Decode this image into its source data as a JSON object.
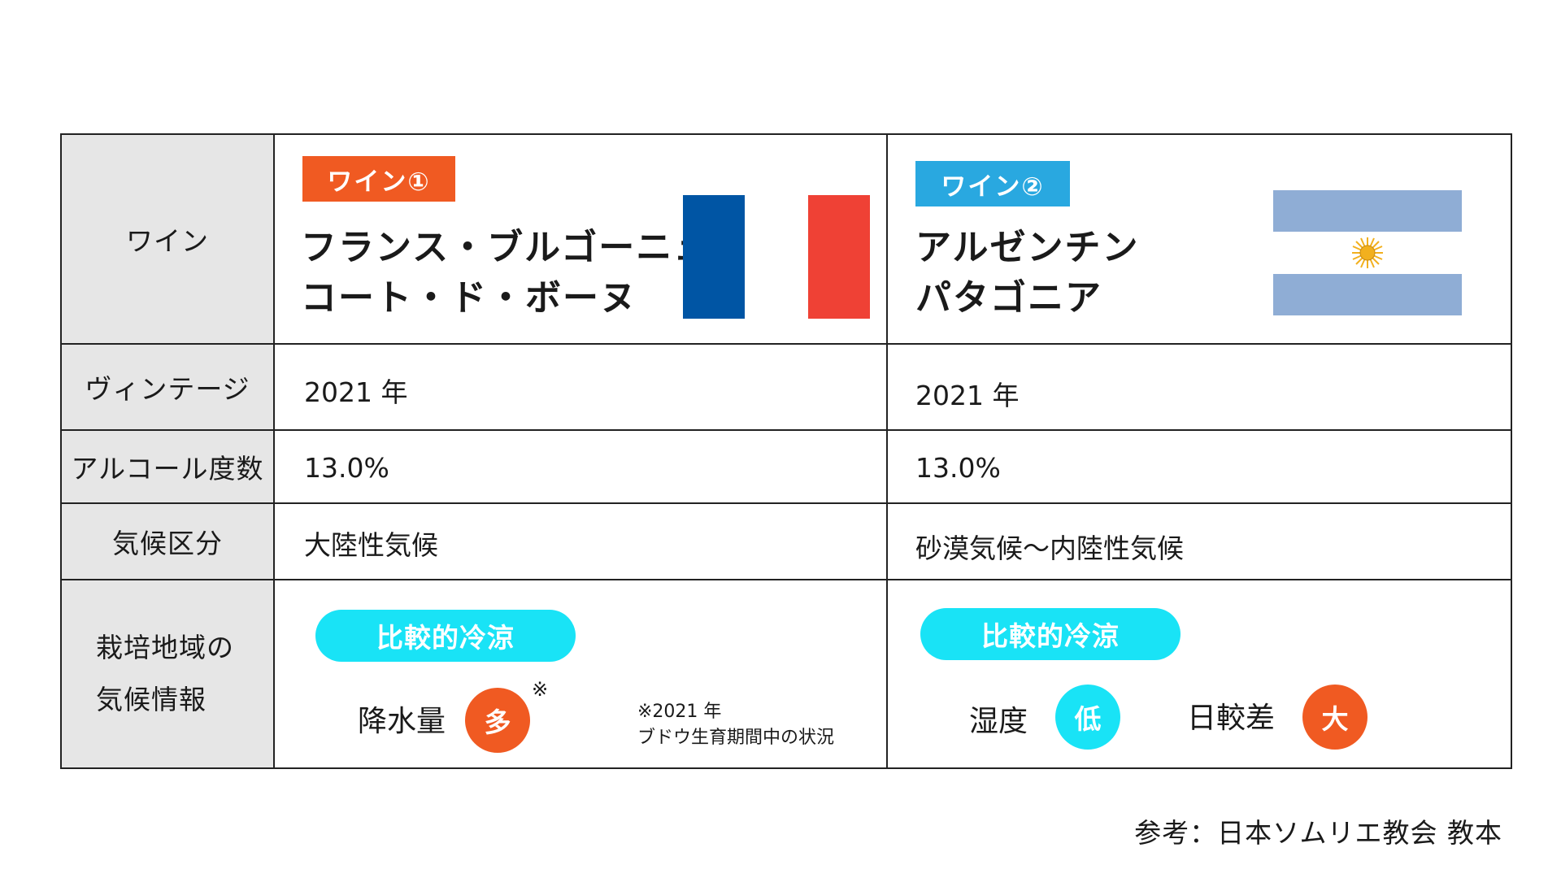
{
  "rows": {
    "wine_label": "ワイン",
    "vintage_label": "ヴィンテージ",
    "alcohol_label": "アルコール度数",
    "climate_label": "気候区分",
    "cultivation_label_line1": "栽培地域の",
    "cultivation_label_line2": "気候情報"
  },
  "wine1": {
    "tag": "ワイン①",
    "name_line1": "フランス・ブルゴーニュ",
    "name_line2": "コート・ド・ボーヌ",
    "flag": "france-flag",
    "vintage": "2021 年",
    "alcohol": "13.0%",
    "climate": "大陸性気候",
    "pill": "比較的冷涼",
    "rain_label": "降水量",
    "rain_value": "多",
    "rain_mark": "※",
    "note_line1": "※2021 年",
    "note_line2": "ブドウ生育期間中の状況"
  },
  "wine2": {
    "tag": "ワイン②",
    "name_line1": "アルゼンチン",
    "name_line2": "パタゴニア",
    "flag": "argentina-flag",
    "vintage": "2021 年",
    "alcohol": "13.0%",
    "climate": "砂漠気候～内陸性気候",
    "pill": "比較的冷涼",
    "humidity_label": "湿度",
    "humidity_value": "低",
    "diurnal_label": "日較差",
    "diurnal_value": "大"
  },
  "footer": "参考：日本ソムリエ教会 教本",
  "colors": {
    "tag1": "#f05a22",
    "tag2": "#29a8e0",
    "pill": "#19e3f6",
    "france_blue": "#0055a4",
    "france_red": "#ef4135",
    "argentina_blue": "#8fadd5",
    "sun": "#f2b01e"
  }
}
